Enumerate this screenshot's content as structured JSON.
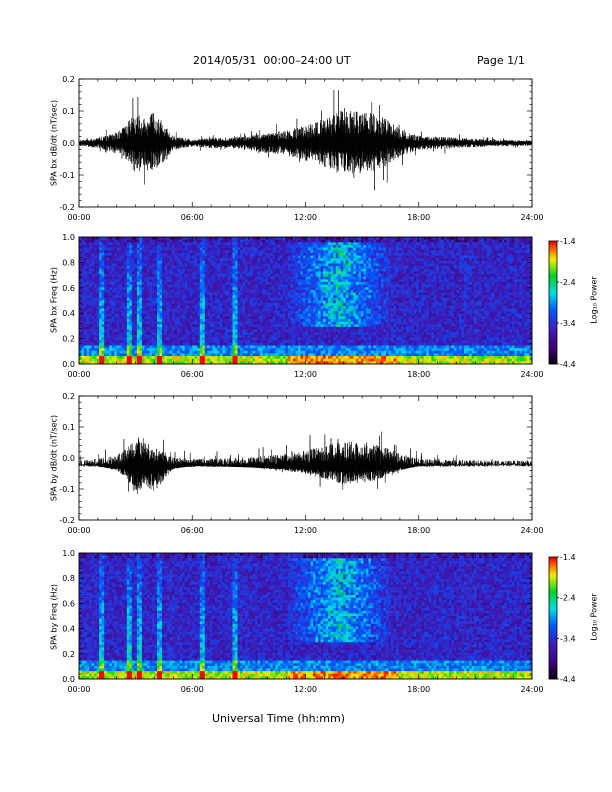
{
  "header": {
    "title": "2014/05/31  00:00–24:00 UT",
    "page": "Page 1/1"
  },
  "xlabel": "Universal Time (hh:mm)",
  "colorbar": {
    "label": "Log₁₀ Power",
    "ticks": [
      "-1.4",
      "-2.4",
      "-3.4",
      "-4.4"
    ],
    "range": [
      -4.4,
      -1.4
    ]
  },
  "chart_data": [
    {
      "type": "line",
      "ylabel": "SPA bx dB/dt (nT/sec)",
      "xlim": [
        "00:00",
        "24:00"
      ],
      "ylim": [
        -0.2,
        0.2
      ],
      "xticks": [
        "00:00",
        "06:00",
        "12:00",
        "18:00",
        "24:00"
      ],
      "yticks": [
        "0.2",
        "0.1",
        "0.0",
        "-0.1",
        "-0.2"
      ],
      "series": [
        {
          "x_hours": [
            0,
            1,
            2,
            2.5,
            3,
            3.5,
            4,
            4.5,
            5,
            6,
            7,
            8,
            9,
            10,
            11,
            12,
            13,
            14,
            15,
            16,
            17,
            18,
            20,
            22,
            24
          ],
          "envelope_max": [
            0.015,
            0.03,
            0.06,
            0.1,
            0.2,
            0.15,
            0.18,
            0.12,
            0.04,
            0.02,
            0.03,
            0.03,
            0.04,
            0.06,
            0.07,
            0.1,
            0.14,
            0.2,
            0.18,
            0.16,
            0.08,
            0.04,
            0.03,
            0.02,
            0.015
          ],
          "envelope_min": [
            -0.015,
            -0.03,
            -0.06,
            -0.1,
            -0.18,
            -0.15,
            -0.16,
            -0.12,
            -0.04,
            -0.02,
            -0.03,
            -0.03,
            -0.04,
            -0.06,
            -0.07,
            -0.1,
            -0.14,
            -0.18,
            -0.17,
            -0.15,
            -0.08,
            -0.04,
            -0.03,
            -0.02,
            -0.015
          ]
        }
      ]
    },
    {
      "type": "heatmap",
      "ylabel": "SPA bx Freq (Hz)",
      "xlim": [
        "00:00",
        "24:00"
      ],
      "ylim": [
        0.0,
        1.0
      ],
      "xticks": [
        "00:00",
        "06:00",
        "12:00",
        "18:00",
        "24:00"
      ],
      "yticks": [
        "1.0",
        "0.8",
        "0.6",
        "0.4",
        "0.2",
        "0.0"
      ],
      "colorscale": "log10 power",
      "zlim": [
        -4.4,
        -1.4
      ]
    },
    {
      "type": "line",
      "ylabel": "SPA by dB/dt (nT/sec)",
      "xlim": [
        "00:00",
        "24:00"
      ],
      "ylim": [
        -0.2,
        0.2
      ],
      "xticks": [
        "00:00",
        "06:00",
        "12:00",
        "18:00",
        "24:00"
      ],
      "yticks": [
        "0.2",
        "0.1",
        "0.0",
        "-0.1",
        "-0.2"
      ],
      "series": [
        {
          "x_hours": [
            0,
            1,
            2,
            2.5,
            3,
            3.5,
            4,
            4.5,
            5,
            6,
            7,
            8,
            9,
            10,
            11,
            12,
            13,
            14,
            15,
            16,
            17,
            18,
            20,
            22,
            24
          ],
          "envelope_max": [
            0.01,
            0.02,
            0.04,
            0.08,
            0.16,
            0.12,
            0.1,
            0.06,
            0.03,
            0.02,
            0.02,
            0.025,
            0.03,
            0.04,
            0.05,
            0.07,
            0.1,
            0.12,
            0.12,
            0.1,
            0.05,
            0.02,
            0.015,
            0.01,
            0.01
          ],
          "envelope_min": [
            -0.01,
            -0.02,
            -0.05,
            -0.09,
            -0.2,
            -0.14,
            -0.18,
            -0.1,
            -0.04,
            -0.02,
            -0.02,
            -0.025,
            -0.03,
            -0.04,
            -0.05,
            -0.07,
            -0.1,
            -0.13,
            -0.12,
            -0.1,
            -0.05,
            -0.02,
            -0.015,
            -0.01,
            -0.01
          ],
          "baseline": -0.03
        }
      ]
    },
    {
      "type": "heatmap",
      "ylabel": "SPA by Freq (Hz)",
      "xlim": [
        "00:00",
        "24:00"
      ],
      "ylim": [
        0.0,
        1.0
      ],
      "xticks": [
        "00:00",
        "06:00",
        "12:00",
        "18:00",
        "24:00"
      ],
      "yticks": [
        "1.0",
        "0.8",
        "0.6",
        "0.4",
        "0.2",
        "0.0"
      ],
      "colorscale": "log10 power",
      "zlim": [
        -4.4,
        -1.4
      ]
    }
  ]
}
